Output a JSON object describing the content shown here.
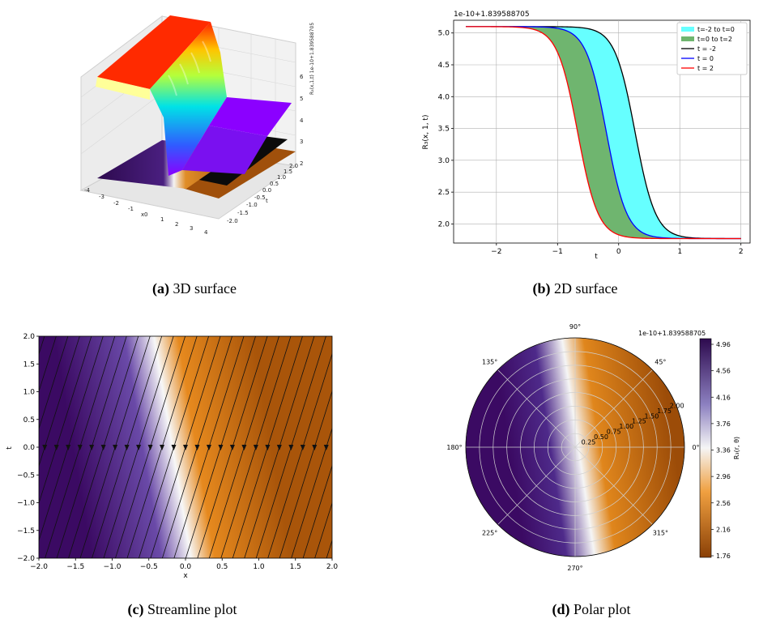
{
  "captions": {
    "a": {
      "tag": "(a)",
      "text": "3D surface"
    },
    "b": {
      "tag": "(b)",
      "text": "2D surface"
    },
    "c": {
      "tag": "(c)",
      "text": "Streamline plot"
    },
    "d": {
      "tag": "(d)",
      "text": "Polar plot"
    }
  },
  "chart_data": [
    {
      "id": "a",
      "type": "surface3d",
      "title": "",
      "xlabel": "x",
      "ylabel": "t",
      "zlabel": "R₃(x,1,t)",
      "offset_label": "1e-10+1.839588705",
      "z_ticks": [
        "2",
        "3",
        "4",
        "5",
        "6"
      ],
      "x_ticks": [
        "-4",
        "-3",
        "-2",
        "-1",
        "0",
        "1",
        "2",
        "3",
        "4"
      ],
      "y_ticks": [
        "-2.0",
        "-1.5",
        "-1.0",
        "-0.5",
        "0.0",
        "0.5",
        "1.0",
        "1.5",
        "2.0"
      ],
      "colors": {
        "high": "#ff2a00",
        "low": "#8b00ff",
        "floor_dark": "#2d0a4e",
        "floor_orange": "#a0500b"
      }
    },
    {
      "id": "b",
      "type": "line",
      "title": "",
      "xlabel": "t",
      "ylabel": "R₃(x, 1, t)",
      "offset_label": "1e-10+1.839588705",
      "xlim": [
        -2.7,
        2.15
      ],
      "ylim": [
        1.7,
        5.2
      ],
      "x_ticks": [
        -2,
        -1,
        0,
        1,
        2
      ],
      "y_ticks": [
        2.0,
        2.5,
        3.0,
        3.5,
        4.0,
        4.5,
        5.0
      ],
      "grid": true,
      "legend": "top-right",
      "fills": [
        {
          "name": "t=-2 to t=0",
          "color": "#66ffff"
        },
        {
          "name": "t=0 to t=2",
          "color": "#6fb56f"
        }
      ],
      "series": [
        {
          "name": "t = -2",
          "color": "#000000",
          "mid": 0.27
        },
        {
          "name": "t = 0",
          "color": "#0000ff",
          "mid": -0.2
        },
        {
          "name": "t = 2",
          "color": "#ff0000",
          "mid": -0.67
        }
      ],
      "y_high": 5.1,
      "y_low": 1.77,
      "x_start": -2.5,
      "x_end": 2.0
    },
    {
      "id": "c",
      "type": "streamline",
      "title": "",
      "xlabel": "x",
      "ylabel": "t",
      "xlim": [
        -2.0,
        2.0
      ],
      "ylim": [
        -2.0,
        2.0
      ],
      "x_ticks": [
        -2.0,
        -1.5,
        -1.0,
        -0.5,
        0.0,
        0.5,
        1.0,
        1.5,
        2.0
      ],
      "y_ticks": [
        -2.0,
        -1.5,
        -1.0,
        -0.5,
        0.0,
        0.5,
        1.0,
        1.5,
        2.0
      ],
      "colors": {
        "purple": "#3b0a63",
        "white": "#f5f5f5",
        "orange": "#b35806"
      }
    },
    {
      "id": "d",
      "type": "polar",
      "title": "",
      "offset_label": "1e-10+1.839588705",
      "angle_ticks": [
        "0°",
        "45°",
        "90°",
        "135°",
        "180°",
        "225°",
        "270°",
        "315°"
      ],
      "r_ticks": [
        "0.25",
        "0.50",
        "0.75",
        "1.00",
        "1.25",
        "1.50",
        "1.75",
        "2.00"
      ],
      "colorbar_label": "R₃(r, θ)",
      "colorbar_ticks": [
        "4.96",
        "4.56",
        "4.16",
        "3.76",
        "3.36",
        "2.96",
        "2.56",
        "2.16",
        "1.76"
      ]
    }
  ]
}
